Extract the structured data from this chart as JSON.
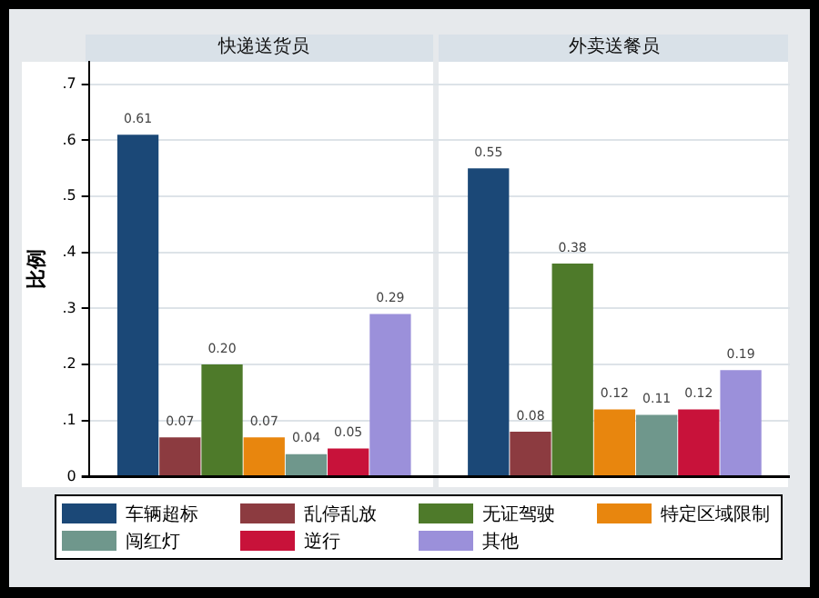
{
  "chart_data": {
    "type": "bar",
    "ylabel": "比例",
    "categories": [
      "快递送货员",
      "外卖送餐员"
    ],
    "ylim": [
      0,
      0.74
    ],
    "yticks": [
      0,
      {
        "value": 0.1,
        "label": ".1"
      },
      {
        "value": 0.2,
        "label": ".2"
      },
      {
        "value": 0.3,
        "label": ".3"
      },
      {
        "value": 0.4,
        "label": ".4"
      },
      {
        "value": 0.5,
        "label": ".5"
      },
      {
        "value": 0.6,
        "label": ".6"
      },
      {
        "value": 0.7,
        "label": ".7"
      }
    ],
    "grid": "y",
    "legend": "bottom",
    "series": [
      {
        "name": "车辆超标",
        "color": "#1b4877",
        "values": [
          0.61,
          0.55
        ],
        "value_labels": [
          "0.61",
          "0.55"
        ]
      },
      {
        "name": "乱停乱放",
        "color": "#8c3b40",
        "values": [
          0.07,
          0.08
        ],
        "value_labels": [
          "0.07",
          "0.08"
        ]
      },
      {
        "name": "无证驾驶",
        "color": "#4e7a2a",
        "values": [
          0.2,
          0.38
        ],
        "value_labels": [
          "0.20",
          "0.38"
        ]
      },
      {
        "name": "特定区域限制",
        "color": "#e8860e",
        "values": [
          0.07,
          0.12
        ],
        "value_labels": [
          "0.07",
          "0.12"
        ]
      },
      {
        "name": "闯红灯",
        "color": "#6f978c",
        "values": [
          0.04,
          0.11
        ],
        "value_labels": [
          "0.04",
          "0.11"
        ]
      },
      {
        "name": "逆行",
        "color": "#c8123a",
        "values": [
          0.05,
          0.12
        ],
        "value_labels": [
          "0.05",
          "0.12"
        ]
      },
      {
        "name": "其他",
        "color": "#9b90da",
        "values": [
          0.29,
          0.19
        ],
        "value_labels": [
          "0.29",
          "0.19"
        ]
      }
    ]
  }
}
